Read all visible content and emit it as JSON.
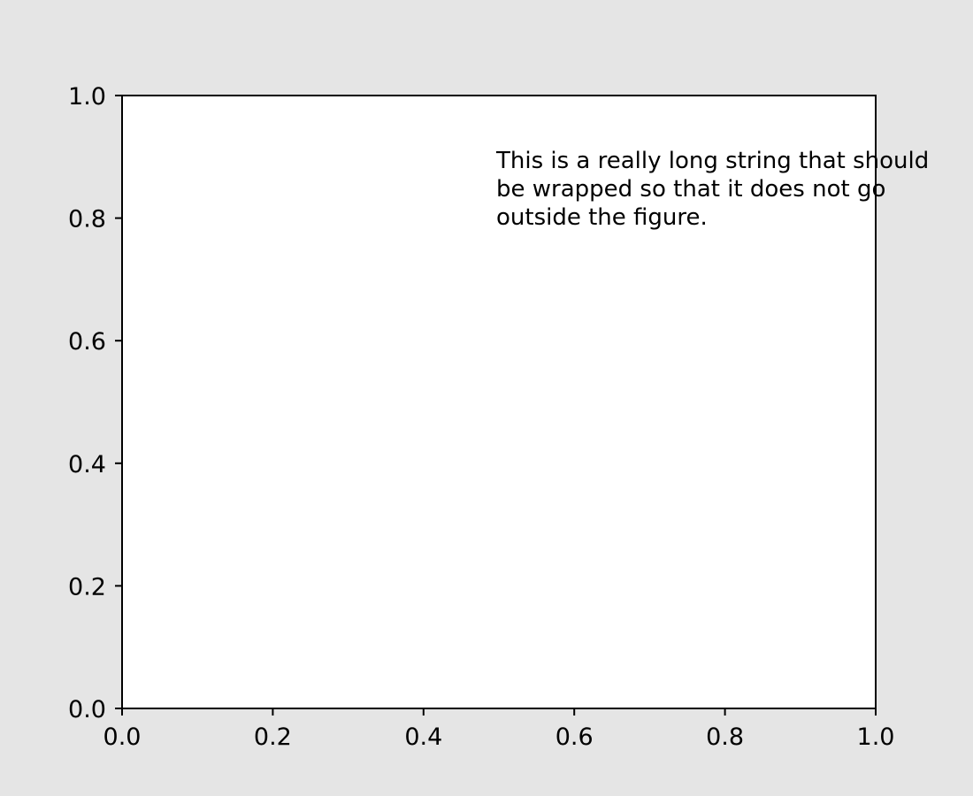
{
  "figure": {
    "background": "#e5e5e5",
    "axes_background": "#ffffff",
    "axis_color": "#000000"
  },
  "chart_data": {
    "type": "scatter",
    "title": "",
    "xlabel": "",
    "ylabel": "",
    "xlim": [
      0.0,
      1.0
    ],
    "ylim": [
      0.0,
      1.0
    ],
    "grid": false,
    "series": [],
    "x_ticks": [
      {
        "value": 0.0,
        "label": "0.0"
      },
      {
        "value": 0.2,
        "label": "0.2"
      },
      {
        "value": 0.4,
        "label": "0.4"
      },
      {
        "value": 0.6,
        "label": "0.6"
      },
      {
        "value": 0.8,
        "label": "0.8"
      },
      {
        "value": 1.0,
        "label": "1.0"
      }
    ],
    "y_ticks": [
      {
        "value": 0.0,
        "label": "0.0"
      },
      {
        "value": 0.2,
        "label": "0.2"
      },
      {
        "value": 0.4,
        "label": "0.4"
      },
      {
        "value": 0.6,
        "label": "0.6"
      },
      {
        "value": 0.8,
        "label": "0.8"
      },
      {
        "value": 1.0,
        "label": "1.0"
      }
    ],
    "annotations": [
      {
        "x": 0.5,
        "y": 0.85,
        "lines": [
          "This is a really long string that should",
          "be wrapped so that it does not go",
          "outside the figure."
        ]
      }
    ]
  }
}
